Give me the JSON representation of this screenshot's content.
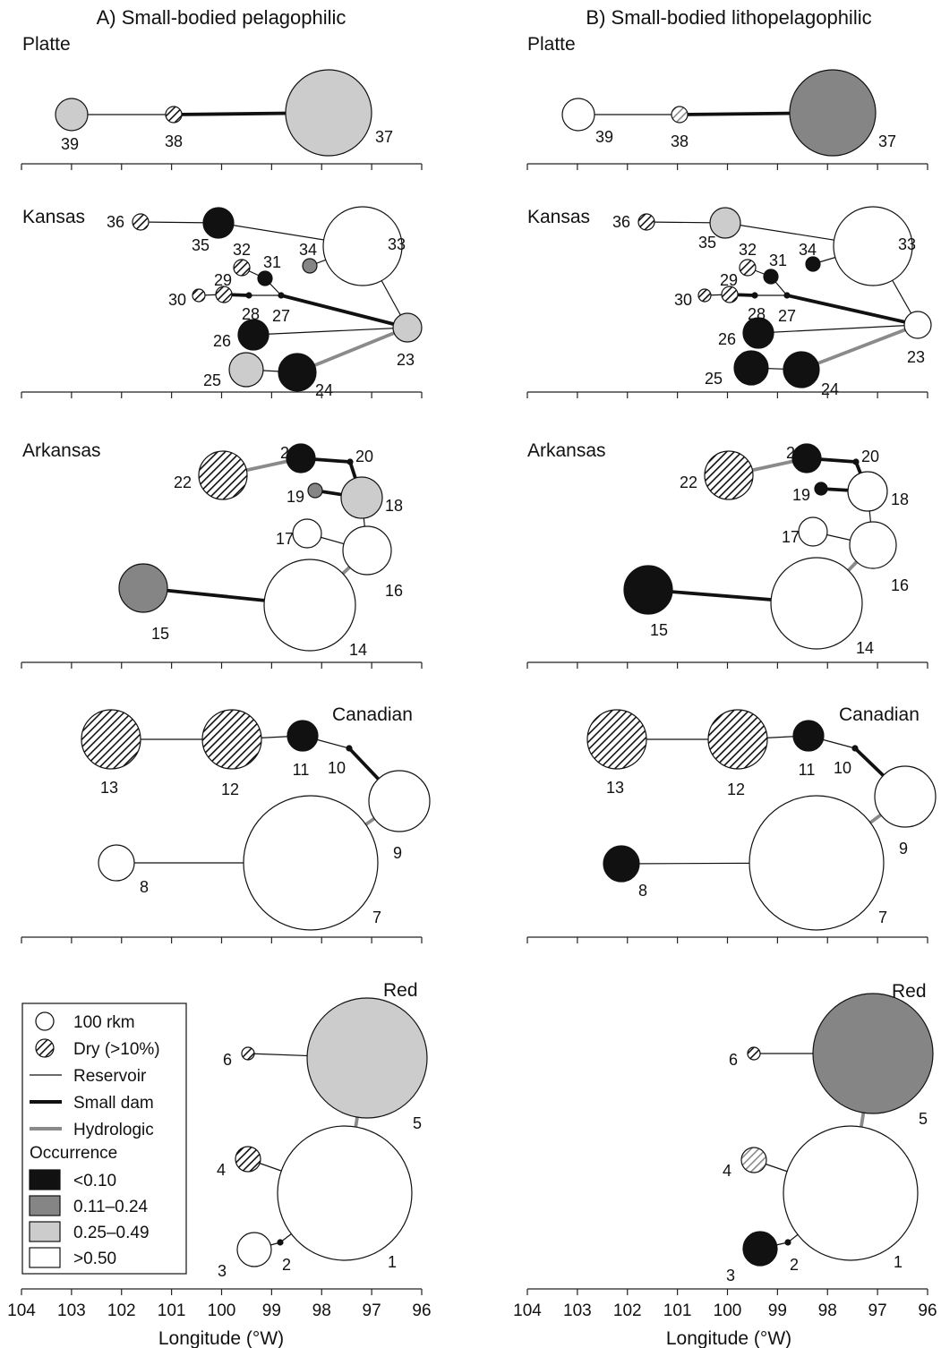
{
  "panels": [
    {
      "id": "A",
      "title": "A) Small-bodied pelagophilic"
    },
    {
      "id": "B",
      "title": "B) Small-bodied lithopelagophilic"
    }
  ],
  "axis": {
    "xlabel": "Longitude (°W)",
    "ticks": [
      "104",
      "103",
      "102",
      "101",
      "100",
      "99",
      "98",
      "97",
      "96"
    ],
    "range": [
      104,
      96
    ]
  },
  "basins": [
    {
      "id": "platte",
      "name": "Platte"
    },
    {
      "id": "kansas",
      "name": "Kansas"
    },
    {
      "id": "arkansas",
      "name": "Arkansas"
    },
    {
      "id": "canadian",
      "name": "Canadian"
    },
    {
      "id": "red",
      "name": "Red"
    }
  ],
  "legend": {
    "size_label": "100 rkm",
    "dry_label": "Dry (>10%)",
    "reservoir_label": "Reservoir",
    "small_dam_label": "Small dam",
    "hydrologic_label": "Hydrologic",
    "occurrence_title": "Occurrence",
    "classes": [
      {
        "id": "c1",
        "label": "<0.10",
        "color": "#111111"
      },
      {
        "id": "c2",
        "label": "0.11–0.24",
        "color": "#858585"
      },
      {
        "id": "c3",
        "label": "0.25–0.49",
        "color": "#cccccc"
      },
      {
        "id": "c4",
        "label": ">0.50",
        "color": "#ffffff"
      }
    ]
  },
  "fragments": [
    {
      "n": "39",
      "A": "c3",
      "B": "c4"
    },
    {
      "n": "38",
      "dry": true,
      "A": "c1",
      "B": "c3"
    },
    {
      "n": "37",
      "A": "c3",
      "B": "c2"
    },
    {
      "n": "36",
      "dry": true,
      "A": "c1",
      "B": "c1"
    },
    {
      "n": "35",
      "A": "c1",
      "B": "c3"
    },
    {
      "n": "34",
      "A": "c2",
      "B": "c1"
    },
    {
      "n": "33",
      "A": "c4",
      "B": "c4"
    },
    {
      "n": "32",
      "dry": true,
      "A": "c1",
      "B": "c1"
    },
    {
      "n": "31",
      "A": "c1",
      "B": "c1"
    },
    {
      "n": "30",
      "dry": true,
      "A": "c1",
      "B": "c1"
    },
    {
      "n": "29",
      "dry": true,
      "A": "c1",
      "B": "c1"
    },
    {
      "n": "28",
      "A": "c1",
      "B": "c1"
    },
    {
      "n": "27",
      "A": "c1",
      "B": "c1"
    },
    {
      "n": "26",
      "A": "c1",
      "B": "c1"
    },
    {
      "n": "25",
      "A": "c3",
      "B": "c1"
    },
    {
      "n": "24",
      "A": "c1",
      "B": "c1"
    },
    {
      "n": "23",
      "A": "c3",
      "B": "c4"
    },
    {
      "n": "22",
      "dry": true,
      "A": "c1",
      "B": "c1"
    },
    {
      "n": "21",
      "A": "c1",
      "B": "c1"
    },
    {
      "n": "20",
      "A": "c1",
      "B": "c1"
    },
    {
      "n": "19",
      "A": "c2",
      "B": "c1"
    },
    {
      "n": "18",
      "A": "c3",
      "B": "c4"
    },
    {
      "n": "17",
      "A": "c4",
      "B": "c4"
    },
    {
      "n": "16",
      "A": "c4",
      "B": "c4"
    },
    {
      "n": "15",
      "A": "c2",
      "B": "c1"
    },
    {
      "n": "14",
      "A": "c4",
      "B": "c4"
    },
    {
      "n": "13",
      "dry": true,
      "A": "c1",
      "B": "c1"
    },
    {
      "n": "12",
      "dry": true,
      "A": "c1",
      "B": "c1"
    },
    {
      "n": "11",
      "A": "c1",
      "B": "c1"
    },
    {
      "n": "10",
      "A": "c1",
      "B": "c1"
    },
    {
      "n": "9",
      "A": "c4",
      "B": "c4"
    },
    {
      "n": "8",
      "A": "c4",
      "B": "c1"
    },
    {
      "n": "7",
      "A": "c4",
      "B": "c4"
    },
    {
      "n": "6",
      "dry": true,
      "A": "c1",
      "B": "c1"
    },
    {
      "n": "5",
      "A": "c3",
      "B": "c2"
    },
    {
      "n": "4",
      "dry": true,
      "A": "c1",
      "B": "c3"
    },
    {
      "n": "3",
      "A": "c4",
      "B": "c1"
    },
    {
      "n": "2",
      "A": "c1",
      "B": "c1"
    },
    {
      "n": "1",
      "A": "c4",
      "B": "c4"
    }
  ],
  "connections": [
    {
      "from": "39",
      "to": "38",
      "type": "reservoir"
    },
    {
      "from": "38",
      "to": "37",
      "type": "small_dam"
    },
    {
      "from": "36",
      "to": "35",
      "type": "reservoir"
    },
    {
      "from": "35",
      "to": "33",
      "type": "reservoir"
    },
    {
      "from": "34",
      "to": "33",
      "type": "reservoir"
    },
    {
      "from": "33",
      "to": "23",
      "type": "reservoir"
    },
    {
      "from": "32",
      "to": "31",
      "type": "reservoir"
    },
    {
      "from": "31",
      "to": "27",
      "type": "reservoir"
    },
    {
      "from": "30",
      "to": "29",
      "type": "reservoir"
    },
    {
      "from": "29",
      "to": "28",
      "type": "small_dam"
    },
    {
      "from": "28",
      "to": "27",
      "type": "reservoir"
    },
    {
      "from": "27",
      "to": "23",
      "type": "small_dam"
    },
    {
      "from": "26",
      "to": "23",
      "type": "reservoir"
    },
    {
      "from": "25",
      "to": "24",
      "type": "reservoir"
    },
    {
      "from": "24",
      "to": "23",
      "type": "hydrologic"
    },
    {
      "from": "22",
      "to": "21",
      "type": "hydrologic"
    },
    {
      "from": "21",
      "to": "20",
      "type": "small_dam"
    },
    {
      "from": "20",
      "to": "18",
      "type": "small_dam"
    },
    {
      "from": "19",
      "to": "18",
      "type": "small_dam"
    },
    {
      "from": "18",
      "to": "16",
      "type": "reservoir"
    },
    {
      "from": "17",
      "to": "16",
      "type": "reservoir"
    },
    {
      "from": "16",
      "to": "14",
      "type": "hydrologic"
    },
    {
      "from": "15",
      "to": "14",
      "type": "small_dam"
    },
    {
      "from": "13",
      "to": "12",
      "type": "reservoir"
    },
    {
      "from": "12",
      "to": "11",
      "type": "reservoir"
    },
    {
      "from": "11",
      "to": "10",
      "type": "reservoir"
    },
    {
      "from": "10",
      "to": "9",
      "type": "small_dam"
    },
    {
      "from": "9",
      "to": "7",
      "type": "hydrologic"
    },
    {
      "from": "8",
      "to": "7",
      "type": "reservoir"
    },
    {
      "from": "6",
      "to": "5",
      "type": "reservoir"
    },
    {
      "from": "5",
      "to": "1",
      "type": "hydrologic"
    },
    {
      "from": "4",
      "to": "1",
      "type": "reservoir"
    },
    {
      "from": "3",
      "to": "2",
      "type": "reservoir"
    },
    {
      "from": "2",
      "to": "1",
      "type": "reservoir"
    }
  ]
}
